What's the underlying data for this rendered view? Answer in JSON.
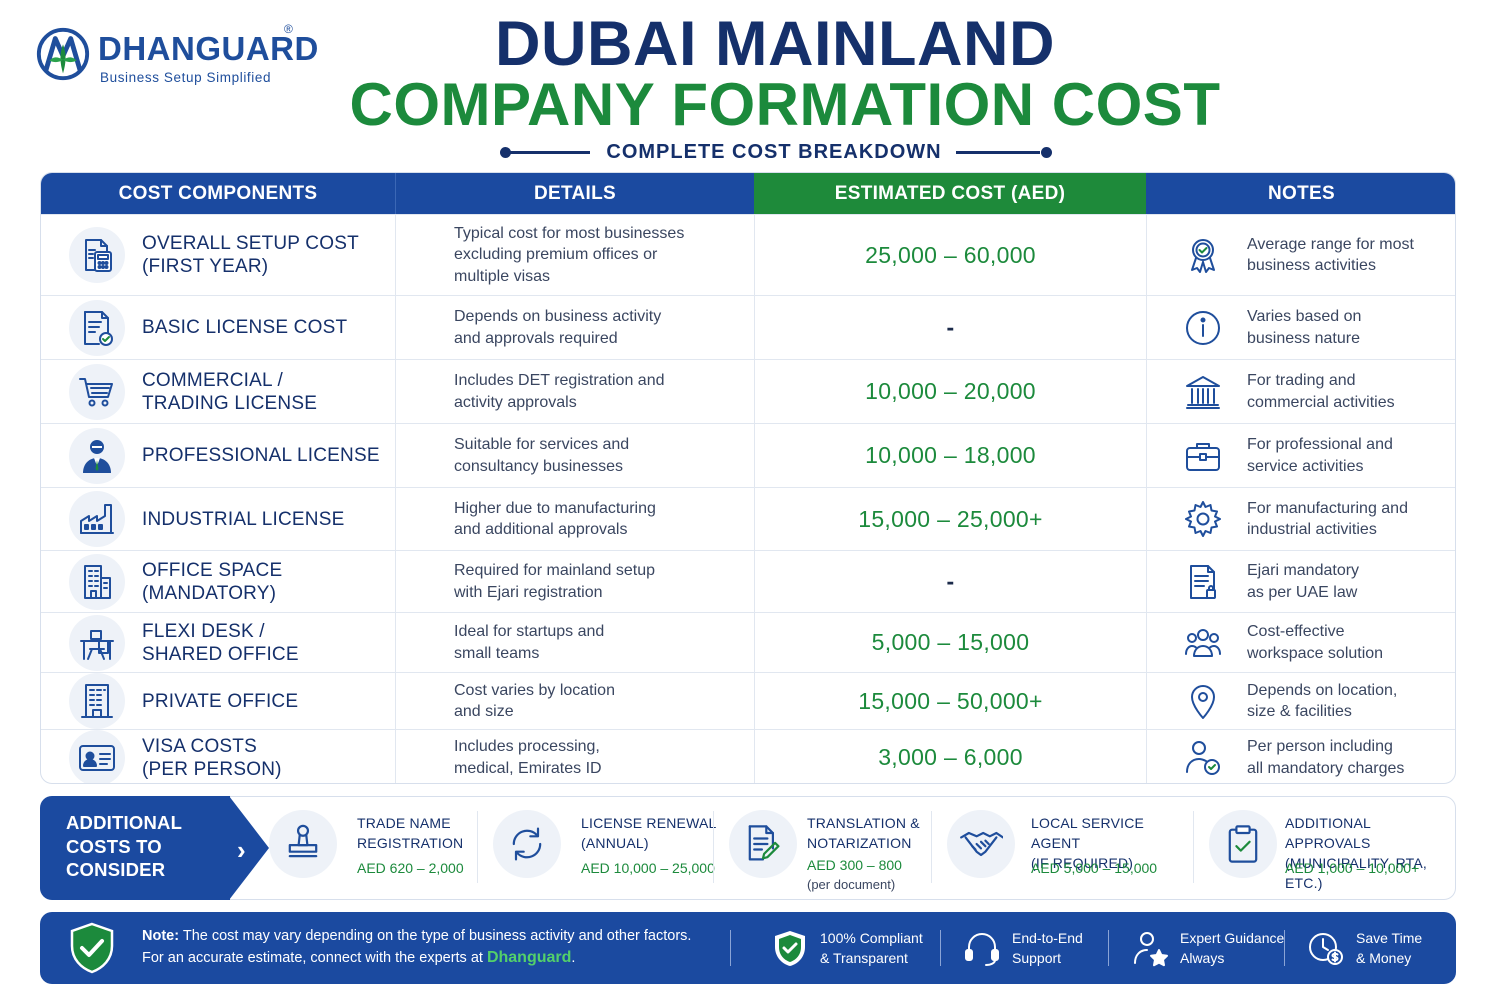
{
  "brand": {
    "name": "DHANGUARD",
    "registered": "®",
    "tagline": "Business Setup Simplified"
  },
  "header": {
    "title_line1": "DUBAI MAINLAND",
    "title_line2": "COMPANY FORMATION COST",
    "subtitle": "COMPLETE COST BREAKDOWN"
  },
  "colors": {
    "navy": "#15306b",
    "blue": "#1b4aa0",
    "green": "#1c8a3c"
  },
  "table": {
    "headers": {
      "components": "COST COMPONENTS",
      "details": "DETAILS",
      "cost": "ESTIMATED COST (AED)",
      "notes": "NOTES"
    },
    "rows": [
      {
        "icon": "calculator-document-icon",
        "component": [
          "OVERALL SETUP COST",
          "(FIRST YEAR)"
        ],
        "details": [
          "Typical cost for most businesses",
          "excluding premium offices or",
          "multiple visas"
        ],
        "cost": "25,000 – 60,000",
        "note_icon": "award-badge-icon",
        "notes": [
          "Average range for most",
          "business activities"
        ]
      },
      {
        "icon": "license-document-check-icon",
        "component": [
          "BASIC LICENSE COST"
        ],
        "details": [
          "Depends on business activity",
          "and approvals required"
        ],
        "cost": "-",
        "note_icon": "info-icon",
        "notes": [
          "Varies based on",
          "business nature"
        ]
      },
      {
        "icon": "shopping-cart-icon",
        "component": [
          "COMMERCIAL /",
          "TRADING LICENSE"
        ],
        "details": [
          "Includes DET registration and",
          "activity approvals"
        ],
        "cost": "10,000 – 20,000",
        "note_icon": "bank-building-icon",
        "notes": [
          "For trading and",
          "commercial activities"
        ]
      },
      {
        "icon": "professional-person-icon",
        "component": [
          "PROFESSIONAL LICENSE"
        ],
        "details": [
          "Suitable for services and",
          "consultancy businesses"
        ],
        "cost": "10,000 – 18,000",
        "note_icon": "briefcase-icon",
        "notes": [
          "For professional and",
          "service activities"
        ]
      },
      {
        "icon": "factory-icon",
        "component": [
          "INDUSTRIAL LICENSE"
        ],
        "details": [
          "Higher due to manufacturing",
          "and additional approvals"
        ],
        "cost": "15,000 – 25,000+",
        "note_icon": "gear-icon",
        "notes": [
          "For manufacturing and",
          "industrial activities"
        ]
      },
      {
        "icon": "office-building-icon",
        "component": [
          "OFFICE SPACE",
          "(MANDATORY)"
        ],
        "details": [
          "Required for mainland setup",
          "with Ejari registration"
        ],
        "cost": "-",
        "note_icon": "contract-document-icon",
        "notes": [
          "Ejari mandatory",
          "as per UAE law"
        ]
      },
      {
        "icon": "desk-chair-icon",
        "component": [
          "FLEXI DESK /",
          "SHARED OFFICE"
        ],
        "details": [
          "Ideal for startups and",
          "small teams"
        ],
        "cost": "5,000 – 15,000",
        "note_icon": "people-group-icon",
        "notes": [
          "Cost-effective",
          "workspace solution"
        ]
      },
      {
        "icon": "private-office-building-icon",
        "component": [
          "PRIVATE OFFICE"
        ],
        "details": [
          "Cost varies by location",
          "and size"
        ],
        "cost": "15,000 – 50,000+",
        "note_icon": "location-pin-icon",
        "notes": [
          "Depends on location,",
          "size & facilities"
        ]
      },
      {
        "icon": "id-card-icon",
        "component": [
          "VISA COSTS",
          "(PER PERSON)"
        ],
        "details": [
          "Includes processing,",
          "medical, Emirates ID"
        ],
        "cost": "3,000 – 6,000",
        "note_icon": "person-check-icon",
        "notes": [
          "Per person including",
          "all mandatory charges"
        ]
      }
    ]
  },
  "additional": {
    "title": [
      "ADDITIONAL",
      "COSTS TO",
      "CONSIDER"
    ],
    "items": [
      {
        "icon": "stamp-icon",
        "label": [
          "TRADE NAME",
          "REGISTRATION"
        ],
        "price": "AED 620 – 2,000",
        "sub": ""
      },
      {
        "icon": "renew-arrows-icon",
        "label": [
          "LICENSE RENEWAL",
          "(ANNUAL)"
        ],
        "price": "AED 10,000 – 25,000",
        "sub": ""
      },
      {
        "icon": "document-pen-icon",
        "label": [
          "TRANSLATION &",
          "NOTARIZATION"
        ],
        "price": "AED 300 – 800",
        "sub": "(per document)"
      },
      {
        "icon": "handshake-icon",
        "label": [
          "LOCAL SERVICE AGENT",
          "(IF REQUIRED)"
        ],
        "price": "AED 5,000 – 15,000",
        "sub": ""
      },
      {
        "icon": "clipboard-check-icon",
        "label": [
          "ADDITIONAL APPROVALS",
          "(MUNICIPALITY, RTA, ETC.)"
        ],
        "price": "AED 1,000 – 10,000+",
        "sub": ""
      }
    ]
  },
  "footer": {
    "note_label": "Note:",
    "note_text1": "The cost may vary depending on the type of business activity and other factors.",
    "note_text2": "For an accurate estimate, connect with the experts at",
    "note_brand": "Dhanguard",
    "note_end": ".",
    "features": [
      {
        "icon": "shield-check-icon",
        "lines": [
          "100% Compliant",
          "& Transparent"
        ]
      },
      {
        "icon": "headset-icon",
        "lines": [
          "End-to-End",
          "Support"
        ]
      },
      {
        "icon": "expert-star-icon",
        "lines": [
          "Expert Guidance",
          "Always"
        ]
      },
      {
        "icon": "clock-money-icon",
        "lines": [
          "Save Time",
          "& Money"
        ]
      }
    ]
  }
}
